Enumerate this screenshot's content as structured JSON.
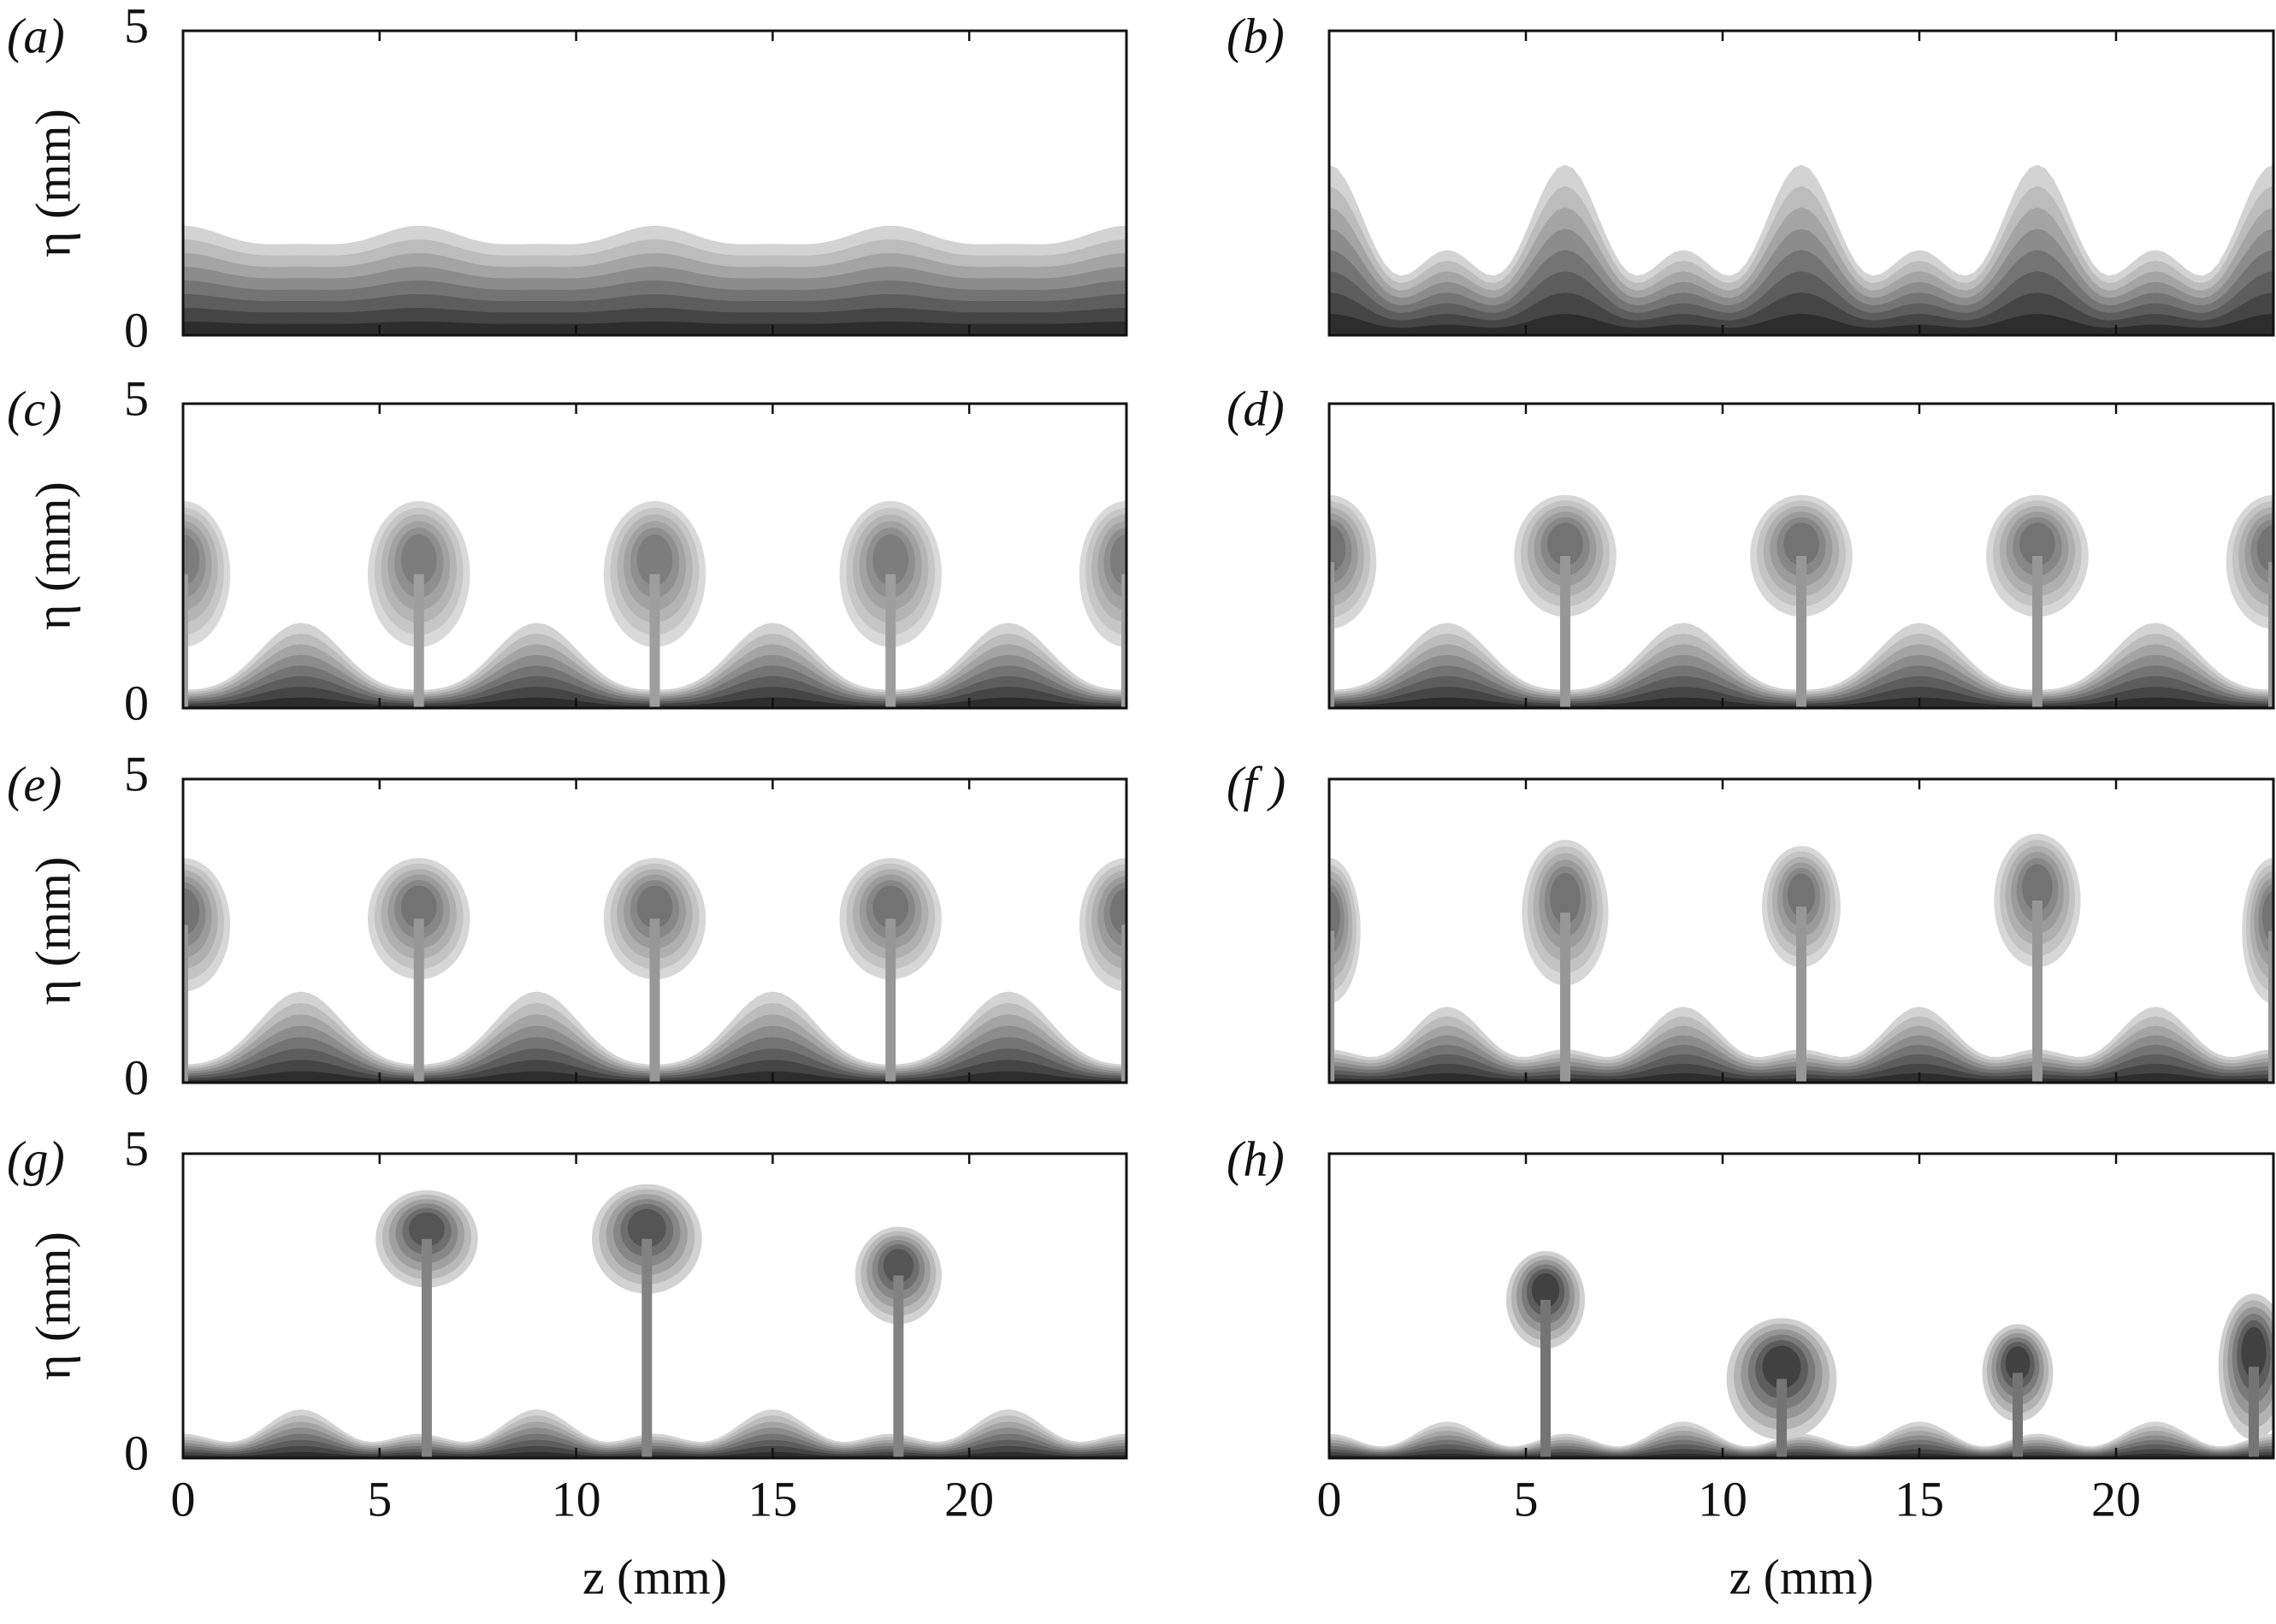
{
  "chart_data": [
    {
      "type": "contour",
      "panel_label": "(a)",
      "ylabel": "η (mm)",
      "xlim": [
        0,
        24
      ],
      "ylim": [
        0,
        5
      ],
      "yticks": [
        0,
        5
      ]
    },
    {
      "type": "contour",
      "panel_label": "(b)",
      "xlim": [
        0,
        24
      ],
      "ylim": [
        0,
        5
      ]
    },
    {
      "type": "contour",
      "panel_label": "(c)",
      "ylabel": "η (mm)",
      "xlim": [
        0,
        24
      ],
      "ylim": [
        0,
        5
      ],
      "yticks": [
        0,
        5
      ]
    },
    {
      "type": "contour",
      "panel_label": "(d)",
      "xlim": [
        0,
        24
      ],
      "ylim": [
        0,
        5
      ]
    },
    {
      "type": "contour",
      "panel_label": "(e)",
      "ylabel": "η (mm)",
      "xlim": [
        0,
        24
      ],
      "ylim": [
        0,
        5
      ],
      "yticks": [
        0,
        5
      ]
    },
    {
      "type": "contour",
      "panel_label": "(f )",
      "xlim": [
        0,
        24
      ],
      "ylim": [
        0,
        5
      ]
    },
    {
      "type": "contour",
      "panel_label": "(g)",
      "ylabel": "η (mm)",
      "xlabel": "z (mm)",
      "xlim": [
        0,
        24
      ],
      "ylim": [
        0,
        5
      ],
      "yticks": [
        0,
        5
      ],
      "xticks": [
        0,
        5,
        10,
        15,
        20
      ]
    },
    {
      "type": "contour",
      "panel_label": "(h)",
      "xlabel": "z (mm)",
      "xlim": [
        0,
        24
      ],
      "ylim": [
        0,
        5
      ],
      "xticks": [
        0,
        5,
        10,
        15,
        20
      ]
    }
  ]
}
